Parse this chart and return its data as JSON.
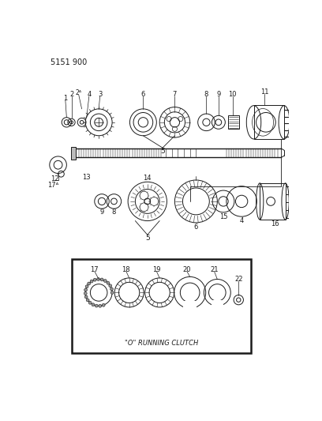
{
  "title_code": "5151 900",
  "bg": "#ffffff",
  "lc": "#1a1a1a",
  "fig_w": 4.08,
  "fig_h": 5.33,
  "dpi": 100,
  "clutch_label": "\"O\" RUNNING CLUTCH"
}
